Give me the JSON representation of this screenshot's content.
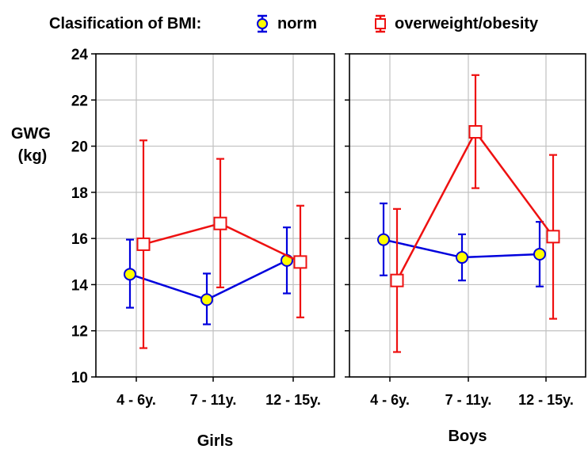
{
  "chart_data": {
    "type": "line",
    "legend_title": "Clasification of BMI:",
    "legend_placement": "top",
    "ylabel": [
      "GWG",
      "(kg)"
    ],
    "ylim": [
      10,
      24
    ],
    "yticks": [
      "10",
      "12",
      "14",
      "16",
      "18",
      "20",
      "22",
      "24"
    ],
    "categories": [
      "4 - 6y.",
      "7 - 11y.",
      "12 - 15y."
    ],
    "grid": true,
    "error_bars": true,
    "colors": {
      "norm": "#0000dd",
      "norm_fill": "#ffff00",
      "overweight": "#ee1111",
      "overweight_fill": "#ffffff"
    },
    "panels": [
      {
        "label": "Girls",
        "series": [
          {
            "name": "norm",
            "marker": "circle",
            "values": [
              14.45,
              13.35,
              15.05
            ],
            "lower": [
              13.0,
              12.28,
              13.62
            ],
            "upper": [
              15.95,
              14.48,
              16.48
            ]
          },
          {
            "name": "overweight/obesity",
            "marker": "square",
            "values": [
              15.75,
              16.65,
              14.98
            ],
            "lower": [
              11.25,
              13.88,
              12.58
            ],
            "upper": [
              20.25,
              19.45,
              17.42
            ]
          }
        ]
      },
      {
        "label": "Boys",
        "series": [
          {
            "name": "norm",
            "marker": "circle",
            "values": [
              15.95,
              15.18,
              15.32
            ],
            "lower": [
              14.4,
              14.18,
              13.92
            ],
            "upper": [
              17.52,
              16.18,
              16.72
            ]
          },
          {
            "name": "overweight/obesity",
            "marker": "square",
            "values": [
              14.18,
              20.62,
              16.08
            ],
            "lower": [
              11.08,
              18.18,
              12.52
            ],
            "upper": [
              17.28,
              23.08,
              19.62
            ]
          }
        ]
      }
    ]
  }
}
